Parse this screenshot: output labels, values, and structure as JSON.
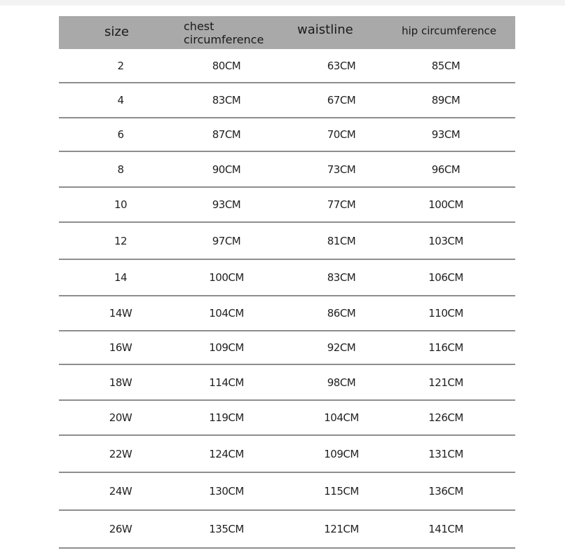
{
  "headers": [
    "size",
    "chest circumference",
    "waistline",
    "hip circumference"
  ],
  "rows": [
    [
      "2",
      "80CM",
      "63CM",
      "85CM"
    ],
    [
      "4",
      "83CM",
      "67CM",
      "89CM"
    ],
    [
      "6",
      "87CM",
      "70CM",
      "93CM"
    ],
    [
      "8",
      "90CM",
      "73CM",
      "96CM"
    ],
    [
      "10",
      "93CM",
      "77CM",
      "100CM"
    ],
    [
      "12",
      "97CM",
      "81CM",
      "103CM"
    ],
    [
      "14",
      "100CM",
      "83CM",
      "106CM"
    ],
    [
      "14W",
      "104CM",
      "86CM",
      "110CM"
    ],
    [
      "16W",
      "109CM",
      "92CM",
      "116CM"
    ],
    [
      "18W",
      "114CM",
      "98CM",
      "121CM"
    ],
    [
      "20W",
      "119CM",
      "104CM",
      "126CM"
    ],
    [
      "22W",
      "124CM",
      "109CM",
      "131CM"
    ],
    [
      "24W",
      "130CM",
      "115CM",
      "136CM"
    ],
    [
      "26W",
      "135CM",
      "121CM",
      "141CM"
    ]
  ],
  "colors": {
    "header_bg": "#a9a9a9",
    "divider": "#8e8e8e"
  }
}
